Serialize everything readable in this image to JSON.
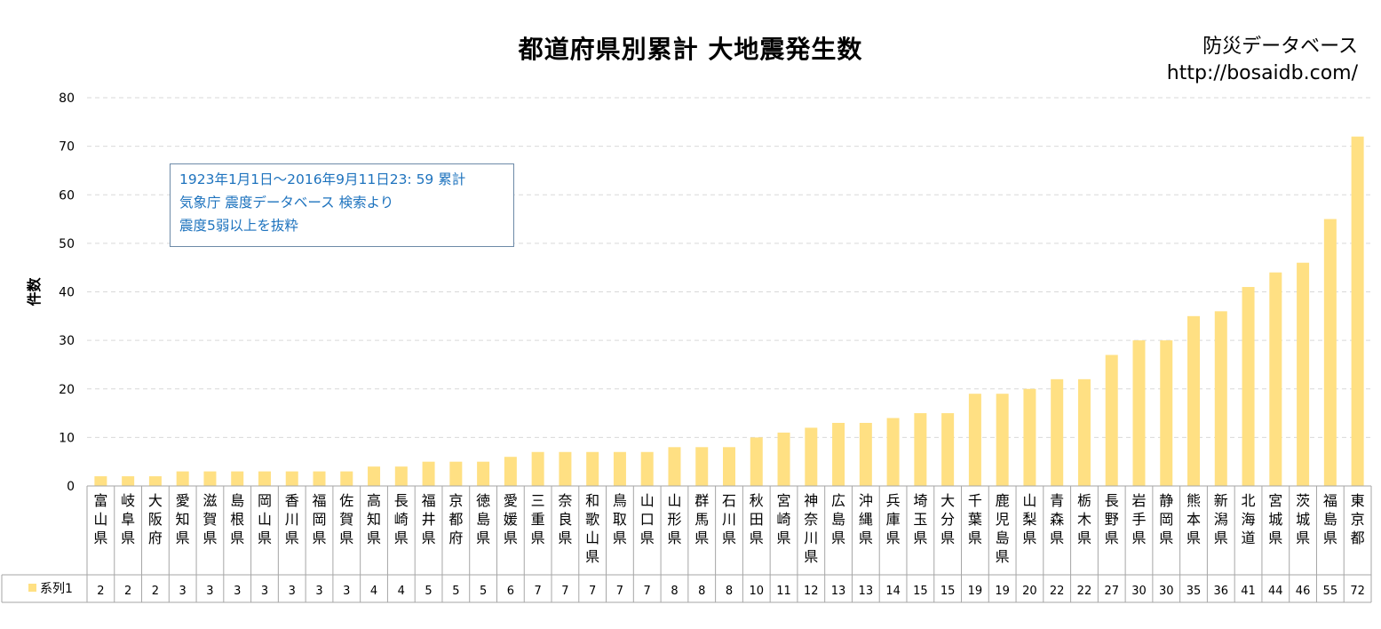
{
  "chart_data": {
    "type": "bar",
    "title": "都道府県別累計  大地震発生数",
    "ylabel": "件数",
    "ylim": [
      0,
      80
    ],
    "yticks": [
      0,
      10,
      20,
      30,
      40,
      50,
      60,
      70,
      80
    ],
    "grid": true,
    "bar_color": "#ffe083",
    "legend_label": "系列1",
    "categories": [
      "富山県",
      "岐阜県",
      "大阪府",
      "愛知県",
      "滋賀県",
      "島根県",
      "岡山県",
      "香川県",
      "福岡県",
      "佐賀県",
      "高知県",
      "長崎県",
      "福井県",
      "京都府",
      "徳島県",
      "愛媛県",
      "三重県",
      "奈良県",
      "和歌山県",
      "鳥取県",
      "山口県",
      "山形県",
      "群馬県",
      "石川県",
      "秋田県",
      "宮崎県",
      "神奈川県",
      "広島県",
      "沖縄県",
      "兵庫県",
      "埼玉県",
      "大分県",
      "千葉県",
      "鹿児島県",
      "山梨県",
      "青森県",
      "栃木県",
      "長野県",
      "岩手県",
      "静岡県",
      "熊本県",
      "新潟県",
      "北海道",
      "宮城県",
      "茨城県",
      "福島県",
      "東京都"
    ],
    "series": [
      {
        "name": "系列1",
        "values": [
          2,
          2,
          2,
          3,
          3,
          3,
          3,
          3,
          3,
          3,
          4,
          4,
          5,
          5,
          5,
          6,
          7,
          7,
          7,
          7,
          7,
          8,
          8,
          8,
          10,
          11,
          12,
          13,
          13,
          14,
          15,
          15,
          19,
          19,
          20,
          22,
          22,
          27,
          30,
          30,
          35,
          36,
          41,
          44,
          46,
          55,
          72
        ]
      }
    ]
  },
  "source": {
    "name": "防災データベース",
    "url": "http://bosaidb.com/"
  },
  "note": {
    "line1": "1923年1月1日～2016年9月11日23: 59  累計",
    "line2": "気象庁  震度データベース 検索より",
    "line3": "震度5弱以上を抜粋"
  }
}
